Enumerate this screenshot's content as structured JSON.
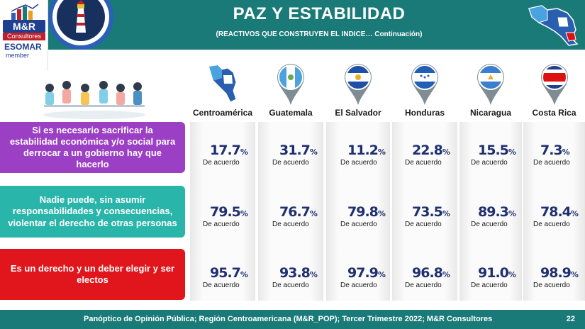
{
  "header": {
    "title": "PAZ Y ESTABILIDAD",
    "subtitle": "(REACTIVOS QUE CONSTRUYEN EL INDICE… Continuación)"
  },
  "logo": {
    "name": "M&R",
    "sub": "Consultores",
    "esomar": "ESOMAR",
    "member": "member"
  },
  "footer": {
    "source": "Panóptico de Opinión Pública; Región Centroamericana (M&R_POP); Tercer Trimestre 2022; M&R Consultores",
    "page": "22"
  },
  "colors": {
    "header": "#1a7a78",
    "row1": "#9b3fc4",
    "row2": "#2ab5aa",
    "row3": "#e0161c",
    "value": "#1f3070"
  },
  "chart_data": {
    "type": "table",
    "categories": [
      "Centroamérica",
      "Guatemala",
      "El Salvador",
      "Honduras",
      "Nicaragua",
      "Costa Rica"
    ],
    "value_label": "De acuerdo",
    "unit": "%",
    "series": [
      {
        "name": "Si es necesario sacrificar la estabilidad económica y/o social para derrocar a un gobierno hay que hacerlo",
        "values": [
          17.7,
          31.7,
          11.2,
          22.8,
          15.5,
          7.3
        ]
      },
      {
        "name": "Nadie puede, sin asumir responsabilidades y consecuencias, violentar el derecho de otras personas",
        "values": [
          79.5,
          76.7,
          79.8,
          73.5,
          89.3,
          78.4
        ]
      },
      {
        "name": "Es un derecho y un deber elegir y ser electos",
        "values": [
          95.7,
          93.8,
          97.9,
          96.8,
          91.0,
          98.9
        ]
      }
    ]
  }
}
